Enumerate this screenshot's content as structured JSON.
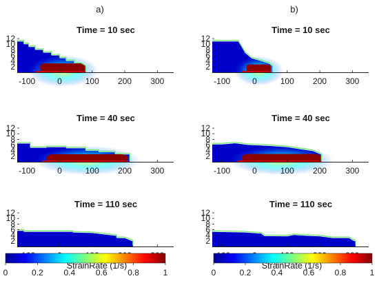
{
  "panel_labels": [
    "a)",
    "b)"
  ],
  "colorbar": {
    "ticks": [
      "0",
      "0.2",
      "0.4",
      "0.6",
      "0.8",
      "1"
    ],
    "range": [
      0,
      1
    ],
    "colormap": "jet"
  },
  "chart_data": [
    {
      "type": "heatmap",
      "column": "a",
      "title": "Time = 10 sec",
      "xlabel": "",
      "xticks": [
        -100,
        0,
        100,
        200,
        300
      ],
      "yticks": [
        2,
        4,
        6,
        8,
        10,
        12
      ],
      "xlim": [
        -130,
        350
      ],
      "ylim": [
        0,
        13
      ],
      "front_x": 80,
      "max_height": 11
    },
    {
      "type": "heatmap",
      "column": "b",
      "title": "Time = 10 sec",
      "xlabel": "",
      "xticks": [
        -100,
        0,
        100,
        200,
        300
      ],
      "yticks": [
        2,
        4,
        6,
        8,
        10,
        12
      ],
      "xlim": [
        -130,
        350
      ],
      "ylim": [
        0,
        13
      ],
      "front_x": 55,
      "max_height": 11
    },
    {
      "type": "heatmap",
      "column": "a",
      "title": "Time = 40 sec",
      "xlabel": "",
      "xticks": [
        -100,
        0,
        100,
        200,
        300
      ],
      "yticks": [
        2,
        4,
        6,
        8,
        10,
        12
      ],
      "xlim": [
        -130,
        350
      ],
      "ylim": [
        0,
        13
      ],
      "front_x": 215,
      "max_height": 7
    },
    {
      "type": "heatmap",
      "column": "b",
      "title": "Time = 40 sec",
      "xlabel": "",
      "xticks": [
        -100,
        0,
        100,
        200,
        300
      ],
      "yticks": [
        2,
        4,
        6,
        8,
        10,
        12
      ],
      "xlim": [
        -130,
        350
      ],
      "ylim": [
        0,
        13
      ],
      "front_x": 205,
      "max_height": 7
    },
    {
      "type": "heatmap",
      "column": "a",
      "title": "Time = 110 sec",
      "xlabel": "StrainRate (1/s)",
      "xticks": [
        -100,
        0,
        100,
        200,
        300
      ],
      "yticks": [
        2,
        4,
        6,
        8,
        10,
        12
      ],
      "xlim": [
        -130,
        350
      ],
      "ylim": [
        0,
        13
      ],
      "front_x": 225,
      "max_height": 6
    },
    {
      "type": "heatmap",
      "column": "b",
      "title": "Time = 110 sec",
      "xlabel": "StrainRate (1/s)",
      "xticks": [
        -100,
        0,
        100,
        200,
        300
      ],
      "yticks": [
        2,
        4,
        6,
        8,
        10,
        12
      ],
      "xlim": [
        -130,
        350
      ],
      "ylim": [
        0,
        13
      ],
      "front_x": 310,
      "max_height": 6
    }
  ]
}
